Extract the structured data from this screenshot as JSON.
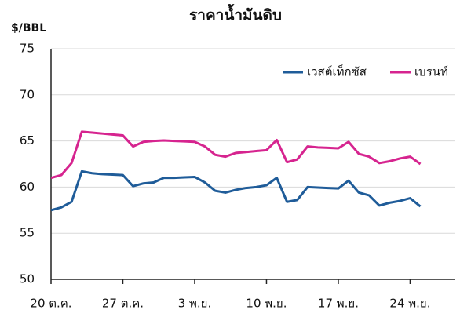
{
  "chart_data": {
    "type": "line",
    "title": "ราคาน้ำมันดิบ",
    "y_label": "$/BBL",
    "categories": [
      "20 ต.ค.",
      null,
      null,
      null,
      null,
      null,
      null,
      "27 ต.ค.",
      null,
      null,
      null,
      null,
      null,
      null,
      "3 พ.ย.",
      null,
      null,
      null,
      null,
      null,
      null,
      "10 พ.ย.",
      null,
      null,
      null,
      null,
      null,
      null,
      "17 พ.ย.",
      null,
      null,
      null,
      null,
      null,
      null,
      "24 พ.ย.",
      null
    ],
    "series": [
      {
        "name": "เวสต์เท็กซัส",
        "color": "#1f5c99",
        "values": [
          57.5,
          57.8,
          58.4,
          61.7,
          61.5,
          61.4,
          61.35,
          61.3,
          60.1,
          60.4,
          60.5,
          61.0,
          61.0,
          61.05,
          61.1,
          60.5,
          59.6,
          59.4,
          59.7,
          59.9,
          60.0,
          60.2,
          61.0,
          58.4,
          58.6,
          60.0,
          59.95,
          59.9,
          59.85,
          60.7,
          59.4,
          59.1,
          58.0,
          58.3,
          58.5,
          58.8,
          57.9
        ]
      },
      {
        "name": "เบรนท์",
        "color": "#d6248f",
        "values": [
          61.0,
          61.3,
          62.6,
          66.0,
          65.9,
          65.8,
          65.7,
          65.6,
          64.4,
          64.9,
          65.0,
          65.05,
          65.0,
          64.95,
          64.9,
          64.4,
          63.5,
          63.3,
          63.7,
          63.8,
          63.9,
          64.0,
          65.1,
          62.7,
          63.0,
          64.4,
          64.3,
          64.25,
          64.2,
          64.9,
          63.6,
          63.3,
          62.6,
          62.8,
          63.1,
          63.3,
          62.5
        ]
      }
    ],
    "ylim": [
      50,
      75
    ],
    "yticks": [
      50,
      55,
      60,
      65,
      70,
      75
    ],
    "grid": true
  }
}
